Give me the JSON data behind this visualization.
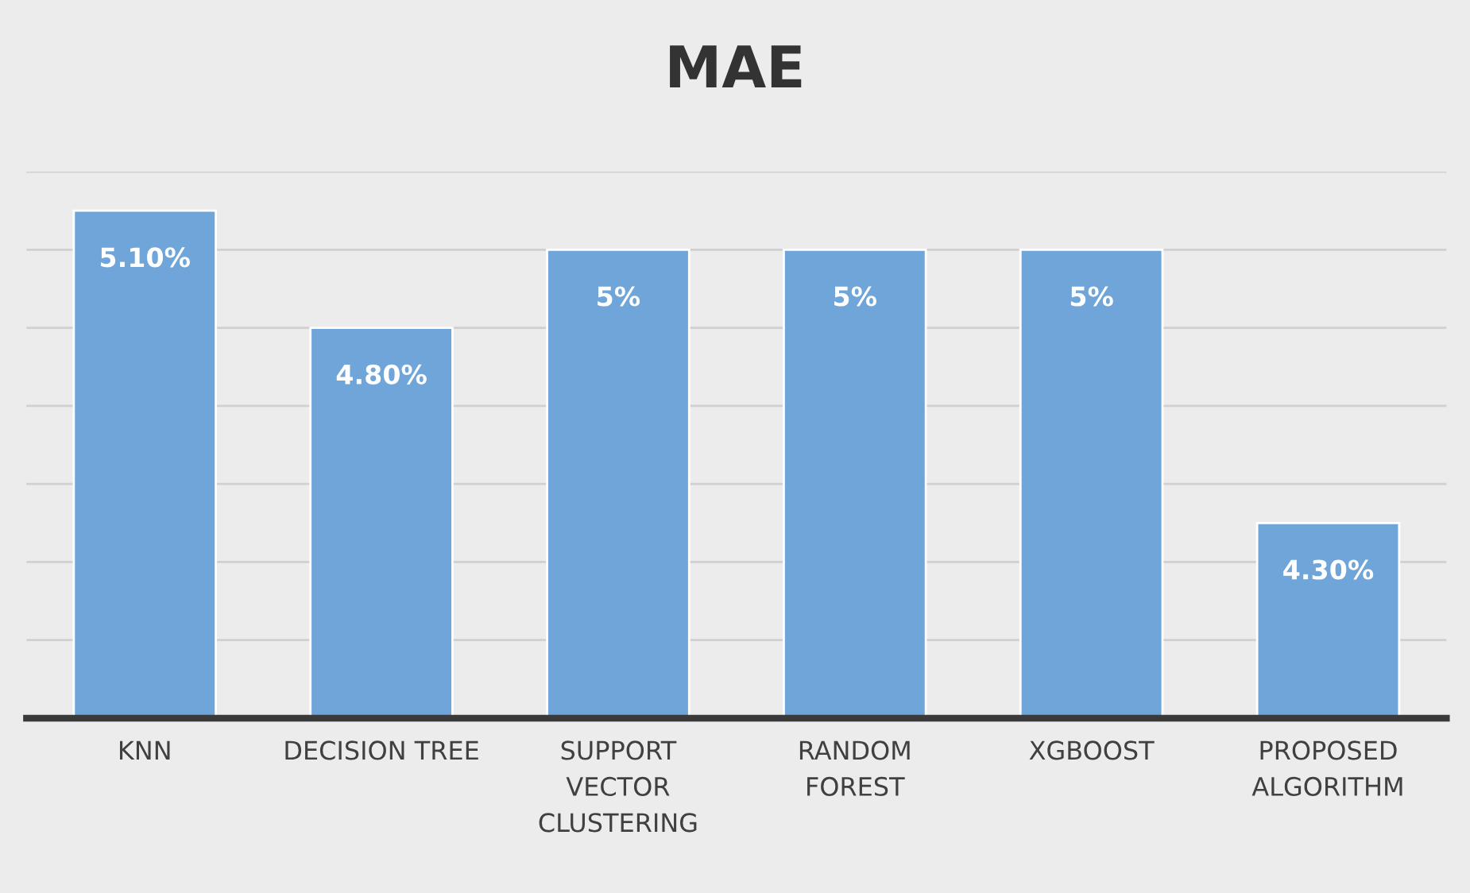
{
  "chart_data": {
    "type": "bar",
    "title": "MAE",
    "categories": [
      "KNN",
      "DECISION TREE",
      "SUPPORT\nVECTOR\nCLUSTERING",
      "RANDOM\nFOREST",
      "XGBOOST",
      "PROPOSED\nALGORITHM"
    ],
    "values": [
      5.1,
      4.8,
      5.0,
      5.0,
      5.0,
      4.3
    ],
    "value_labels": [
      "5.10%",
      "4.80%",
      "5%",
      "5%",
      "5%",
      "4.30%"
    ],
    "color": "#6fa5d8",
    "ylim": [
      3.8,
      5.2
    ],
    "yticks": [
      {
        "value": 3.8,
        "label": null
      },
      {
        "value": 4.0,
        "label": null
      },
      {
        "value": 4.2,
        "label": null
      },
      {
        "value": 4.4,
        "label": null
      },
      {
        "value": 4.6,
        "label": null
      },
      {
        "value": 4.8,
        "label": null
      },
      {
        "value": 5.0,
        "label": null
      },
      {
        "value": 5.2,
        "label": null
      }
    ],
    "grid": "y",
    "tick_labels": "x"
  }
}
